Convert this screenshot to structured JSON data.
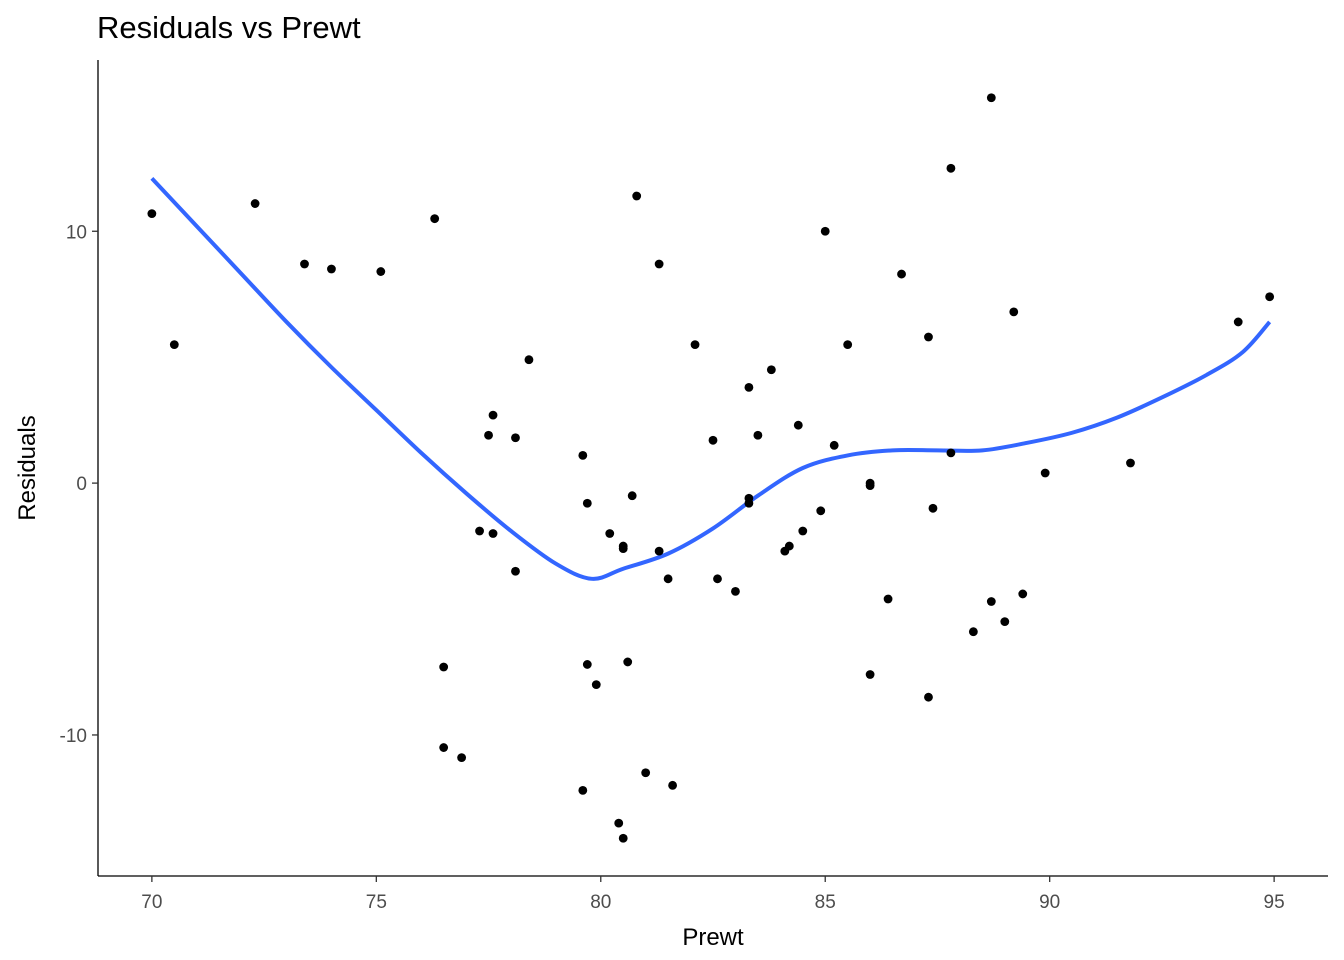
{
  "chart_data": {
    "type": "scatter",
    "title": "Residuals vs Prewt",
    "xlabel": "Prewt",
    "ylabel": "Residuals",
    "xlim": [
      68.8,
      96.2
    ],
    "ylim": [
      -15.6,
      16.8
    ],
    "x_ticks": [
      70,
      75,
      80,
      85,
      90,
      95
    ],
    "y_ticks": [
      -10,
      0,
      10
    ],
    "grid": false,
    "point_color": "#000000",
    "smooth_color": "#3366ff",
    "points": [
      {
        "x": 70.0,
        "y": 10.7
      },
      {
        "x": 70.5,
        "y": 5.5
      },
      {
        "x": 72.3,
        "y": 11.1
      },
      {
        "x": 73.4,
        "y": 8.7
      },
      {
        "x": 74.0,
        "y": 8.5
      },
      {
        "x": 75.1,
        "y": 8.4
      },
      {
        "x": 76.3,
        "y": 10.5
      },
      {
        "x": 76.5,
        "y": -7.3
      },
      {
        "x": 76.5,
        "y": -10.5
      },
      {
        "x": 76.9,
        "y": -10.9
      },
      {
        "x": 77.3,
        "y": -1.9
      },
      {
        "x": 77.5,
        "y": 1.9
      },
      {
        "x": 77.6,
        "y": 2.7
      },
      {
        "x": 77.6,
        "y": -2.0
      },
      {
        "x": 78.1,
        "y": 1.8
      },
      {
        "x": 78.1,
        "y": -3.5
      },
      {
        "x": 78.4,
        "y": 4.9
      },
      {
        "x": 79.6,
        "y": 1.1
      },
      {
        "x": 79.6,
        "y": -12.2
      },
      {
        "x": 79.7,
        "y": -0.8
      },
      {
        "x": 79.7,
        "y": -7.2
      },
      {
        "x": 79.9,
        "y": -8.0
      },
      {
        "x": 80.2,
        "y": -2.0
      },
      {
        "x": 80.4,
        "y": -13.5
      },
      {
        "x": 80.5,
        "y": -2.6
      },
      {
        "x": 80.5,
        "y": -2.5
      },
      {
        "x": 80.5,
        "y": -14.1
      },
      {
        "x": 80.6,
        "y": -7.1
      },
      {
        "x": 80.7,
        "y": -0.5
      },
      {
        "x": 80.8,
        "y": 11.4
      },
      {
        "x": 81.0,
        "y": -11.5
      },
      {
        "x": 81.3,
        "y": 8.7
      },
      {
        "x": 81.3,
        "y": -2.7
      },
      {
        "x": 81.5,
        "y": -3.8
      },
      {
        "x": 81.6,
        "y": -12.0
      },
      {
        "x": 82.1,
        "y": 5.5
      },
      {
        "x": 82.5,
        "y": 1.7
      },
      {
        "x": 82.6,
        "y": -3.8
      },
      {
        "x": 83.0,
        "y": -4.3
      },
      {
        "x": 83.3,
        "y": 3.8
      },
      {
        "x": 83.3,
        "y": -0.6
      },
      {
        "x": 83.3,
        "y": -0.8
      },
      {
        "x": 83.5,
        "y": 1.9
      },
      {
        "x": 83.8,
        "y": 4.5
      },
      {
        "x": 84.1,
        "y": -2.7
      },
      {
        "x": 84.2,
        "y": -2.5
      },
      {
        "x": 84.4,
        "y": 2.3
      },
      {
        "x": 84.5,
        "y": -1.9
      },
      {
        "x": 84.9,
        "y": -1.1
      },
      {
        "x": 85.0,
        "y": 10.0
      },
      {
        "x": 85.2,
        "y": 1.5
      },
      {
        "x": 85.5,
        "y": 5.5
      },
      {
        "x": 86.0,
        "y": -0.1
      },
      {
        "x": 86.0,
        "y": 0.0
      },
      {
        "x": 86.0,
        "y": -7.6
      },
      {
        "x": 86.4,
        "y": -4.6
      },
      {
        "x": 86.7,
        "y": 8.3
      },
      {
        "x": 87.3,
        "y": 5.8
      },
      {
        "x": 87.3,
        "y": -8.5
      },
      {
        "x": 87.4,
        "y": -1.0
      },
      {
        "x": 87.8,
        "y": 12.5
      },
      {
        "x": 87.8,
        "y": 1.2
      },
      {
        "x": 88.3,
        "y": -5.9
      },
      {
        "x": 88.7,
        "y": 15.3
      },
      {
        "x": 88.7,
        "y": -4.7
      },
      {
        "x": 89.0,
        "y": -5.5
      },
      {
        "x": 89.2,
        "y": 6.8
      },
      {
        "x": 89.4,
        "y": -4.4
      },
      {
        "x": 89.9,
        "y": 0.4
      },
      {
        "x": 91.8,
        "y": 0.8
      },
      {
        "x": 94.2,
        "y": 6.4
      },
      {
        "x": 94.9,
        "y": 7.4
      }
    ],
    "smooth_curve": [
      {
        "x": 70.0,
        "y": 12.1
      },
      {
        "x": 71.0,
        "y": 10.2
      },
      {
        "x": 72.0,
        "y": 8.3
      },
      {
        "x": 73.0,
        "y": 6.4
      },
      {
        "x": 74.0,
        "y": 4.6
      },
      {
        "x": 75.0,
        "y": 2.9
      },
      {
        "x": 76.0,
        "y": 1.2
      },
      {
        "x": 77.0,
        "y": -0.4
      },
      {
        "x": 78.0,
        "y": -1.9
      },
      {
        "x": 79.0,
        "y": -3.2
      },
      {
        "x": 79.8,
        "y": -3.8
      },
      {
        "x": 80.5,
        "y": -3.4
      },
      {
        "x": 81.5,
        "y": -2.8
      },
      {
        "x": 82.5,
        "y": -1.8
      },
      {
        "x": 83.5,
        "y": -0.5
      },
      {
        "x": 84.5,
        "y": 0.6
      },
      {
        "x": 85.5,
        "y": 1.1
      },
      {
        "x": 86.5,
        "y": 1.3
      },
      {
        "x": 87.5,
        "y": 1.3
      },
      {
        "x": 88.5,
        "y": 1.3
      },
      {
        "x": 89.5,
        "y": 1.6
      },
      {
        "x": 90.5,
        "y": 2.0
      },
      {
        "x": 91.5,
        "y": 2.6
      },
      {
        "x": 92.5,
        "y": 3.4
      },
      {
        "x": 93.5,
        "y": 4.3
      },
      {
        "x": 94.3,
        "y": 5.2
      },
      {
        "x": 94.9,
        "y": 6.4
      }
    ]
  }
}
